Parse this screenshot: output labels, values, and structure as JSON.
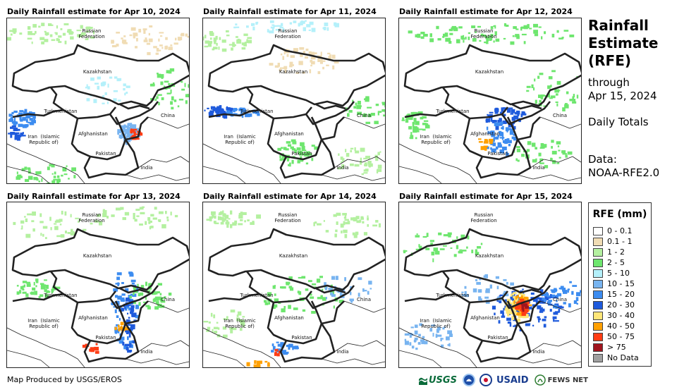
{
  "panels": [
    {
      "title": "Daily Rainfall estimate for Apr 10, 2024",
      "pattern": "a"
    },
    {
      "title": "Daily Rainfall estimate for Apr 11, 2024",
      "pattern": "b"
    },
    {
      "title": "Daily Rainfall estimate for Apr 12, 2024",
      "pattern": "c"
    },
    {
      "title": "Daily Rainfall estimate for Apr 13, 2024",
      "pattern": "d"
    },
    {
      "title": "Daily Rainfall estimate for Apr 14, 2024",
      "pattern": "e"
    },
    {
      "title": "Daily Rainfall estimate for Apr 15, 2024",
      "pattern": "f"
    }
  ],
  "map_labels": {
    "russia": "Russian\nFederation",
    "kazakhstan": "Kazakhstan",
    "turkmenistan": "Turkmenistan",
    "china": "China",
    "iran": "Iran  (Islamic\nRepublic of)",
    "afghanistan": "Afghanistan",
    "pakistan": "Pakistan",
    "india": "India"
  },
  "side": {
    "title": "Rainfall\nEstimate\n(RFE)",
    "through": "through",
    "date": "Apr 15, 2024",
    "totals": "Daily Totals",
    "data_label": "Data:",
    "data_source": "NOAA-RFE2.0"
  },
  "legend": {
    "title": "RFE (mm)",
    "items": [
      {
        "label": "0 - 0.1",
        "color": "#ffffff"
      },
      {
        "label": "0.1 - 1",
        "color": "#f0dcb4"
      },
      {
        "label": "1 - 2",
        "color": "#b4f0a0"
      },
      {
        "label": "2 - 5",
        "color": "#6ee66e"
      },
      {
        "label": "5 - 10",
        "color": "#b4f0fa"
      },
      {
        "label": "10 - 15",
        "color": "#78b4f0"
      },
      {
        "label": "15 - 20",
        "color": "#3c8cf0"
      },
      {
        "label": "20 - 30",
        "color": "#1e5adc"
      },
      {
        "label": "30 - 40",
        "color": "#ffe678"
      },
      {
        "label": "40 - 50",
        "color": "#ffa000"
      },
      {
        "label": "50 - 75",
        "color": "#ff3c14"
      },
      {
        "label": "> 75",
        "color": "#a0141e"
      },
      {
        "label": "No Data",
        "color": "#a0a0a0"
      }
    ]
  },
  "footer": {
    "credit": "Map Produced by USGS/EROS"
  },
  "logos": {
    "usgs": "USGS",
    "usaid": "USAID",
    "fews": "FEWS NET"
  },
  "icons": [
    "usgs-logo-icon",
    "noaa-logo-icon",
    "usaid-logo-icon",
    "fews-logo-icon"
  ]
}
